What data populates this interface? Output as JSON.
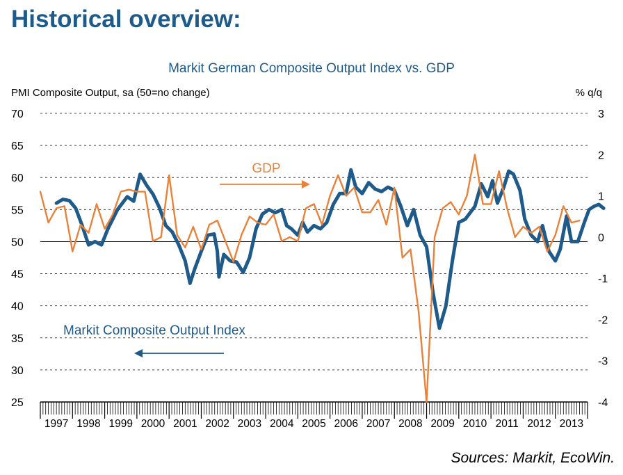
{
  "page": {
    "heading": "Historical overview:",
    "source": "Sources: Markit, EcoWin."
  },
  "chart_data": {
    "type": "line",
    "title": "Markit German Composite Output Index vs. GDP",
    "ylabel_left": "PMI Composite Output, sa (50=no change)",
    "ylabel_right": "% q/q",
    "left_axis": {
      "min": 25,
      "max": 70,
      "ticks": [
        "70",
        "65",
        "60",
        "55",
        "50",
        "45",
        "40",
        "35",
        "30",
        "25"
      ]
    },
    "right_axis": {
      "min": -4,
      "max": 3,
      "ticks": [
        "3",
        "2",
        "1",
        "0",
        "-1",
        "-2",
        "-3",
        "-4"
      ]
    },
    "x_axis": {
      "start": 1997.0,
      "end": 2014.0,
      "ticks": [
        "1997",
        "1998",
        "1999",
        "2000",
        "2001",
        "2002",
        "2003",
        "2004",
        "2005",
        "2006",
        "2007",
        "2008",
        "2009",
        "2010",
        "2011",
        "2012",
        "2013"
      ]
    },
    "reference_line_pmi": 50,
    "grid": "dashed horizontal",
    "annotations": [
      {
        "text": "GDP",
        "series": "GDP"
      },
      {
        "text": "Markit Composite Output Index",
        "series": "pmi"
      }
    ],
    "series": [
      {
        "id": "pmi",
        "name": "Markit Composite Output Index",
        "axis": "left",
        "color": "#1f5b8a",
        "points": [
          [
            1997.5,
            56
          ],
          [
            1997.7,
            56.6
          ],
          [
            1997.9,
            56.4
          ],
          [
            1998.1,
            55.2
          ],
          [
            1998.3,
            52.5
          ],
          [
            1998.5,
            49.5
          ],
          [
            1998.7,
            50
          ],
          [
            1998.9,
            49.5
          ],
          [
            1999.1,
            52
          ],
          [
            1999.4,
            55
          ],
          [
            1999.7,
            57
          ],
          [
            1999.9,
            56.3
          ],
          [
            2000.1,
            60.5
          ],
          [
            2000.3,
            58.8
          ],
          [
            2000.5,
            57.4
          ],
          [
            2000.7,
            55.3
          ],
          [
            2000.9,
            52.5
          ],
          [
            2001.1,
            51.5
          ],
          [
            2001.3,
            49.5
          ],
          [
            2001.5,
            47
          ],
          [
            2001.65,
            43.5
          ],
          [
            2001.8,
            45.8
          ],
          [
            2002.0,
            48.5
          ],
          [
            2002.2,
            51
          ],
          [
            2002.4,
            51.2
          ],
          [
            2002.5,
            48.5
          ],
          [
            2002.55,
            44.5
          ],
          [
            2002.7,
            48
          ],
          [
            2002.9,
            47
          ],
          [
            2003.1,
            46.8
          ],
          [
            2003.3,
            45.2
          ],
          [
            2003.5,
            47.5
          ],
          [
            2003.7,
            52
          ],
          [
            2003.9,
            54.3
          ],
          [
            2004.1,
            55
          ],
          [
            2004.3,
            54.5
          ],
          [
            2004.5,
            55
          ],
          [
            2004.65,
            52.5
          ],
          [
            2004.8,
            52
          ],
          [
            2005.0,
            51
          ],
          [
            2005.15,
            53
          ],
          [
            2005.3,
            51.5
          ],
          [
            2005.5,
            52.5
          ],
          [
            2005.7,
            52
          ],
          [
            2005.9,
            53
          ],
          [
            2006.1,
            55.8
          ],
          [
            2006.3,
            57.5
          ],
          [
            2006.5,
            57.5
          ],
          [
            2006.65,
            61.2
          ],
          [
            2006.8,
            58.5
          ],
          [
            2007.0,
            57.5
          ],
          [
            2007.2,
            59.2
          ],
          [
            2007.4,
            58.2
          ],
          [
            2007.6,
            57.8
          ],
          [
            2007.8,
            58.5
          ],
          [
            2008.0,
            58
          ],
          [
            2008.2,
            55.5
          ],
          [
            2008.4,
            52.5
          ],
          [
            2008.6,
            55
          ],
          [
            2008.8,
            51
          ],
          [
            2009.0,
            49.2
          ],
          [
            2009.2,
            42
          ],
          [
            2009.4,
            36.5
          ],
          [
            2009.6,
            40
          ],
          [
            2009.8,
            47
          ],
          [
            2010.0,
            53
          ],
          [
            2010.2,
            53.5
          ],
          [
            2010.5,
            55.5
          ],
          [
            2010.7,
            59
          ],
          [
            2010.9,
            57
          ],
          [
            2011.05,
            59.5
          ],
          [
            2011.2,
            56
          ],
          [
            2011.4,
            58.5
          ],
          [
            2011.55,
            61
          ],
          [
            2011.7,
            60.5
          ],
          [
            2011.9,
            58
          ],
          [
            2012.05,
            53.5
          ],
          [
            2012.25,
            51
          ],
          [
            2012.45,
            50
          ],
          [
            2012.6,
            52.5
          ],
          [
            2012.8,
            48.5
          ],
          [
            2013.0,
            47
          ],
          [
            2013.15,
            48.8
          ],
          [
            2013.35,
            54
          ],
          [
            2013.5,
            50
          ],
          [
            2013.7,
            50
          ],
          [
            2013.9,
            53
          ],
          [
            2014.05,
            55
          ],
          [
            2014.2,
            55.5
          ],
          [
            2014.35,
            55.8
          ],
          [
            2014.5,
            55.2
          ]
        ]
      },
      {
        "id": "gdp",
        "name": "GDP",
        "axis": "right",
        "color": "#e8823a",
        "points": [
          [
            1997.0,
            1.1
          ],
          [
            1997.25,
            0.35
          ],
          [
            1997.5,
            0.7
          ],
          [
            1997.75,
            0.75
          ],
          [
            1998.0,
            -0.35
          ],
          [
            1998.25,
            0.3
          ],
          [
            1998.5,
            0.1
          ],
          [
            1998.75,
            0.8
          ],
          [
            1999.0,
            0.2
          ],
          [
            1999.25,
            0.55
          ],
          [
            1999.5,
            1.1
          ],
          [
            1999.75,
            1.15
          ],
          [
            2000.0,
            1.1
          ],
          [
            2000.25,
            1.1
          ],
          [
            2000.5,
            -0.1
          ],
          [
            2000.75,
            0.0
          ],
          [
            2001.0,
            1.5
          ],
          [
            2001.25,
            0.05
          ],
          [
            2001.5,
            -0.25
          ],
          [
            2001.75,
            0.25
          ],
          [
            2002.0,
            -0.3
          ],
          [
            2002.25,
            0.3
          ],
          [
            2002.5,
            0.4
          ],
          [
            2002.75,
            -0.1
          ],
          [
            2003.0,
            -0.6
          ],
          [
            2003.25,
            0.05
          ],
          [
            2003.5,
            0.5
          ],
          [
            2003.75,
            0.35
          ],
          [
            2004.0,
            0.3
          ],
          [
            2004.25,
            0.55
          ],
          [
            2004.5,
            -0.1
          ],
          [
            2004.75,
            0.0
          ],
          [
            2005.0,
            -0.1
          ],
          [
            2005.25,
            0.7
          ],
          [
            2005.5,
            0.8
          ],
          [
            2005.75,
            0.3
          ],
          [
            2006.0,
            1.0
          ],
          [
            2006.25,
            1.5
          ],
          [
            2006.5,
            1.0
          ],
          [
            2006.75,
            1.2
          ],
          [
            2007.0,
            0.6
          ],
          [
            2007.25,
            0.6
          ],
          [
            2007.5,
            0.9
          ],
          [
            2007.75,
            0.3
          ],
          [
            2008.0,
            1.2
          ],
          [
            2008.25,
            -0.5
          ],
          [
            2008.5,
            -0.3
          ],
          [
            2008.75,
            -1.8
          ],
          [
            2009.0,
            -4.0
          ],
          [
            2009.25,
            0.0
          ],
          [
            2009.5,
            0.7
          ],
          [
            2009.75,
            0.85
          ],
          [
            2010.0,
            0.55
          ],
          [
            2010.25,
            1.0
          ],
          [
            2010.5,
            2.0
          ],
          [
            2010.75,
            0.8
          ],
          [
            2011.0,
            0.8
          ],
          [
            2011.25,
            1.6
          ],
          [
            2011.5,
            0.7
          ],
          [
            2011.75,
            0.0
          ],
          [
            2012.0,
            0.25
          ],
          [
            2012.25,
            0.1
          ],
          [
            2012.5,
            0.25
          ],
          [
            2012.75,
            -0.35
          ],
          [
            2013.0,
            0.05
          ],
          [
            2013.25,
            0.75
          ],
          [
            2013.5,
            0.35
          ],
          [
            2013.75,
            0.4
          ]
        ]
      }
    ]
  }
}
